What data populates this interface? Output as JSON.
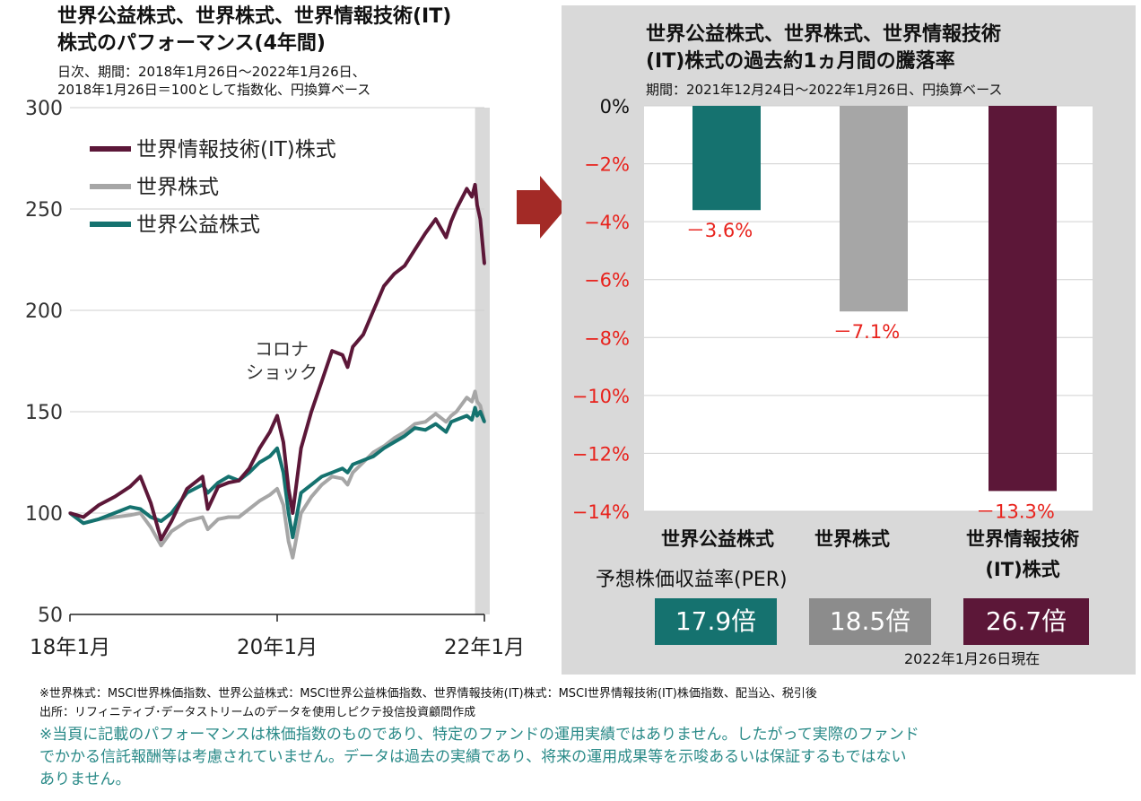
{
  "left_chart": {
    "title_line1": "世界公益株式、世界株式、世界情報技術(IT)",
    "title_line2": "株式のパフォーマンス(4年間)",
    "subtitle_line1": "日次、期間：2018年1月26日～2022年1月26日、",
    "subtitle_line2": "2018年1月26日＝100として指数化、円換算ベース",
    "annotation_line1": "コロナ",
    "annotation_line2": "ショック"
  },
  "right_chart": {
    "title_line1": "世界公益株式、世界株式、世界情報技術",
    "title_line2": "(IT)株式の過去約1ヵ月間の騰落率",
    "subtitle": "期間：2021年12月24日～2022年1月26日、円換算ベース",
    "category_line2": "(IT)株式"
  },
  "per": {
    "label": "予想株価収益率(PER)",
    "values": [
      "17.9倍",
      "18.5倍",
      "26.7倍"
    ],
    "as_of": "2022年1月26日現在"
  },
  "notes": {
    "line1": "※世界株式：MSCI世界株価指数、世界公益株式：MSCI世界公益株価指数、世界情報技術(IT)株式：MSCI世界情報技術(IT)株価指数、配当込、税引後",
    "line2": "出所：リフィニティブ･データストリームのデータを使用しピクテ投信投資顧問作成",
    "warn1": "※当頁に記載のパフォーマンスは株価指数のものであり、特定のファンドの運用実績ではありません。したがって実際のファンド",
    "warn2": "でかかる信託報酬等は考慮されていません。データは過去の実績であり、将来の運用成果等を示唆あるいは保証するもではない",
    "warn3": "ありません。"
  },
  "colors": {
    "it": "#5c1738",
    "world": "#a6a6a6",
    "utilities": "#15726f",
    "arrow": "#a32a26",
    "negative_label": "#e8221c"
  },
  "chart_data": [
    {
      "type": "line",
      "ylim": [
        50,
        300
      ],
      "yticks": [
        50,
        100,
        150,
        200,
        250,
        300
      ],
      "x_range": [
        2018.07,
        2022.07
      ],
      "xticks": [
        {
          "x": 2018.07,
          "label": "18年1月"
        },
        {
          "x": 2020.07,
          "label": "20年1月"
        },
        {
          "x": 2022.07,
          "label": "22年1月"
        }
      ],
      "shaded_region": [
        2021.98,
        2022.07
      ],
      "series": [
        {
          "name": "世界情報技術(IT)株式",
          "color": "#5c1738",
          "x": [
            2018.07,
            2018.2,
            2018.35,
            2018.5,
            2018.65,
            2018.75,
            2018.85,
            2018.95,
            2019.05,
            2019.2,
            2019.35,
            2019.4,
            2019.5,
            2019.6,
            2019.7,
            2019.8,
            2019.9,
            2020.0,
            2020.07,
            2020.13,
            2020.18,
            2020.22,
            2020.3,
            2020.4,
            2020.5,
            2020.6,
            2020.7,
            2020.75,
            2020.8,
            2020.9,
            2021.0,
            2021.1,
            2021.2,
            2021.3,
            2021.4,
            2021.5,
            2021.6,
            2021.7,
            2021.75,
            2021.8,
            2021.9,
            2021.95,
            2021.98,
            2022.0,
            2022.03,
            2022.07
          ],
          "values": [
            100,
            98,
            104,
            108,
            113,
            118,
            105,
            87,
            96,
            112,
            118,
            102,
            113,
            115,
            116,
            122,
            132,
            140,
            148,
            135,
            112,
            100,
            132,
            150,
            165,
            180,
            178,
            172,
            182,
            188,
            200,
            212,
            218,
            222,
            230,
            238,
            245,
            236,
            244,
            250,
            260,
            256,
            262,
            252,
            245,
            223
          ]
        },
        {
          "name": "世界株式",
          "color": "#a6a6a6",
          "x": [
            2018.07,
            2018.2,
            2018.35,
            2018.5,
            2018.65,
            2018.75,
            2018.85,
            2018.95,
            2019.05,
            2019.2,
            2019.35,
            2019.4,
            2019.5,
            2019.6,
            2019.7,
            2019.8,
            2019.9,
            2020.0,
            2020.07,
            2020.13,
            2020.18,
            2020.22,
            2020.3,
            2020.4,
            2020.5,
            2020.6,
            2020.7,
            2020.75,
            2020.8,
            2020.9,
            2021.0,
            2021.1,
            2021.2,
            2021.3,
            2021.4,
            2021.5,
            2021.6,
            2021.7,
            2021.75,
            2021.8,
            2021.9,
            2021.95,
            2021.98,
            2022.0,
            2022.03,
            2022.07
          ],
          "values": [
            100,
            95,
            97,
            98,
            99,
            100,
            93,
            84,
            91,
            96,
            98,
            92,
            97,
            98,
            98,
            102,
            106,
            109,
            112,
            104,
            86,
            78,
            100,
            108,
            114,
            118,
            117,
            114,
            120,
            125,
            130,
            133,
            137,
            140,
            144,
            145,
            149,
            145,
            148,
            150,
            157,
            155,
            160,
            155,
            153,
            145
          ]
        },
        {
          "name": "世界公益株式",
          "color": "#15726f",
          "x": [
            2018.07,
            2018.2,
            2018.35,
            2018.5,
            2018.65,
            2018.75,
            2018.85,
            2018.95,
            2019.05,
            2019.2,
            2019.35,
            2019.4,
            2019.5,
            2019.6,
            2019.7,
            2019.8,
            2019.9,
            2020.0,
            2020.07,
            2020.13,
            2020.18,
            2020.22,
            2020.3,
            2020.4,
            2020.5,
            2020.6,
            2020.7,
            2020.75,
            2020.8,
            2020.9,
            2021.0,
            2021.1,
            2021.2,
            2021.3,
            2021.4,
            2021.5,
            2021.6,
            2021.7,
            2021.75,
            2021.8,
            2021.9,
            2021.95,
            2021.98,
            2022.0,
            2022.03,
            2022.07
          ],
          "values": [
            100,
            95,
            97,
            100,
            103,
            102,
            98,
            96,
            100,
            110,
            114,
            110,
            115,
            118,
            116,
            120,
            125,
            128,
            132,
            120,
            100,
            88,
            110,
            114,
            118,
            120,
            122,
            120,
            124,
            126,
            128,
            132,
            135,
            138,
            142,
            141,
            144,
            140,
            145,
            146,
            148,
            146,
            152,
            148,
            150,
            145
          ]
        }
      ]
    },
    {
      "type": "bar",
      "categories": [
        "世界公益株式",
        "世界株式",
        "世界情報技術"
      ],
      "values": [
        -3.6,
        -7.1,
        -13.3
      ],
      "value_labels": [
        "－3.6%",
        "－7.1%",
        "－13.3%"
      ],
      "colors": [
        "#15726f",
        "#a6a6a6",
        "#5c1738"
      ],
      "ylim": [
        -14,
        0
      ],
      "yticks": [
        0,
        -2,
        -4,
        -6,
        -8,
        -10,
        -12,
        -14
      ],
      "ytick_labels": [
        "0%",
        "−2%",
        "−4%",
        "−6%",
        "−8%",
        "−10%",
        "−12%",
        "−14%"
      ],
      "grid": true
    }
  ]
}
